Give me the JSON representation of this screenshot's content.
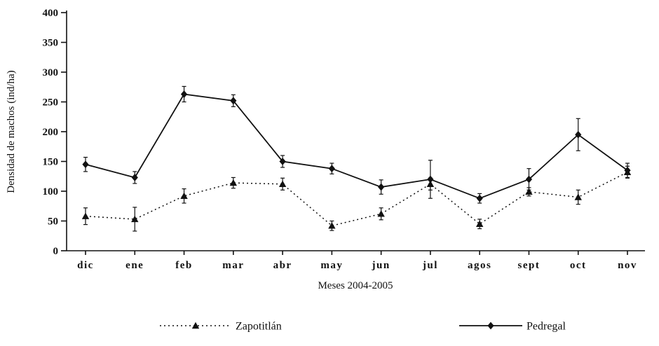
{
  "chart_data": {
    "type": "line",
    "title": "",
    "xlabel": "Meses 2004-2005",
    "ylabel": "Densidad de machos (ind/ha)",
    "ylim": [
      0,
      400
    ],
    "ytick_interval": 50,
    "grid": false,
    "legend_position": "bottom",
    "line_color": "#111111",
    "categories": [
      "dic",
      "ene",
      "feb",
      "mar",
      "abr",
      "may",
      "jun",
      "jul",
      "agos",
      "sept",
      "oct",
      "nov"
    ],
    "series": [
      {
        "name": "Zapotitlán",
        "marker": "triangle",
        "line": "dotted",
        "values": [
          58,
          53,
          92,
          114,
          112,
          42,
          62,
          112,
          45,
          99,
          90,
          132
        ],
        "errors": [
          14,
          20,
          12,
          9,
          10,
          8,
          10,
          10,
          8,
          7,
          12,
          10
        ]
      },
      {
        "name": "Pedregal",
        "marker": "diamond",
        "line": "solid",
        "values": [
          145,
          123,
          263,
          252,
          150,
          138,
          107,
          120,
          88,
          120,
          195,
          135
        ],
        "errors": [
          12,
          10,
          13,
          10,
          10,
          9,
          12,
          32,
          8,
          18,
          27,
          12
        ]
      }
    ]
  }
}
